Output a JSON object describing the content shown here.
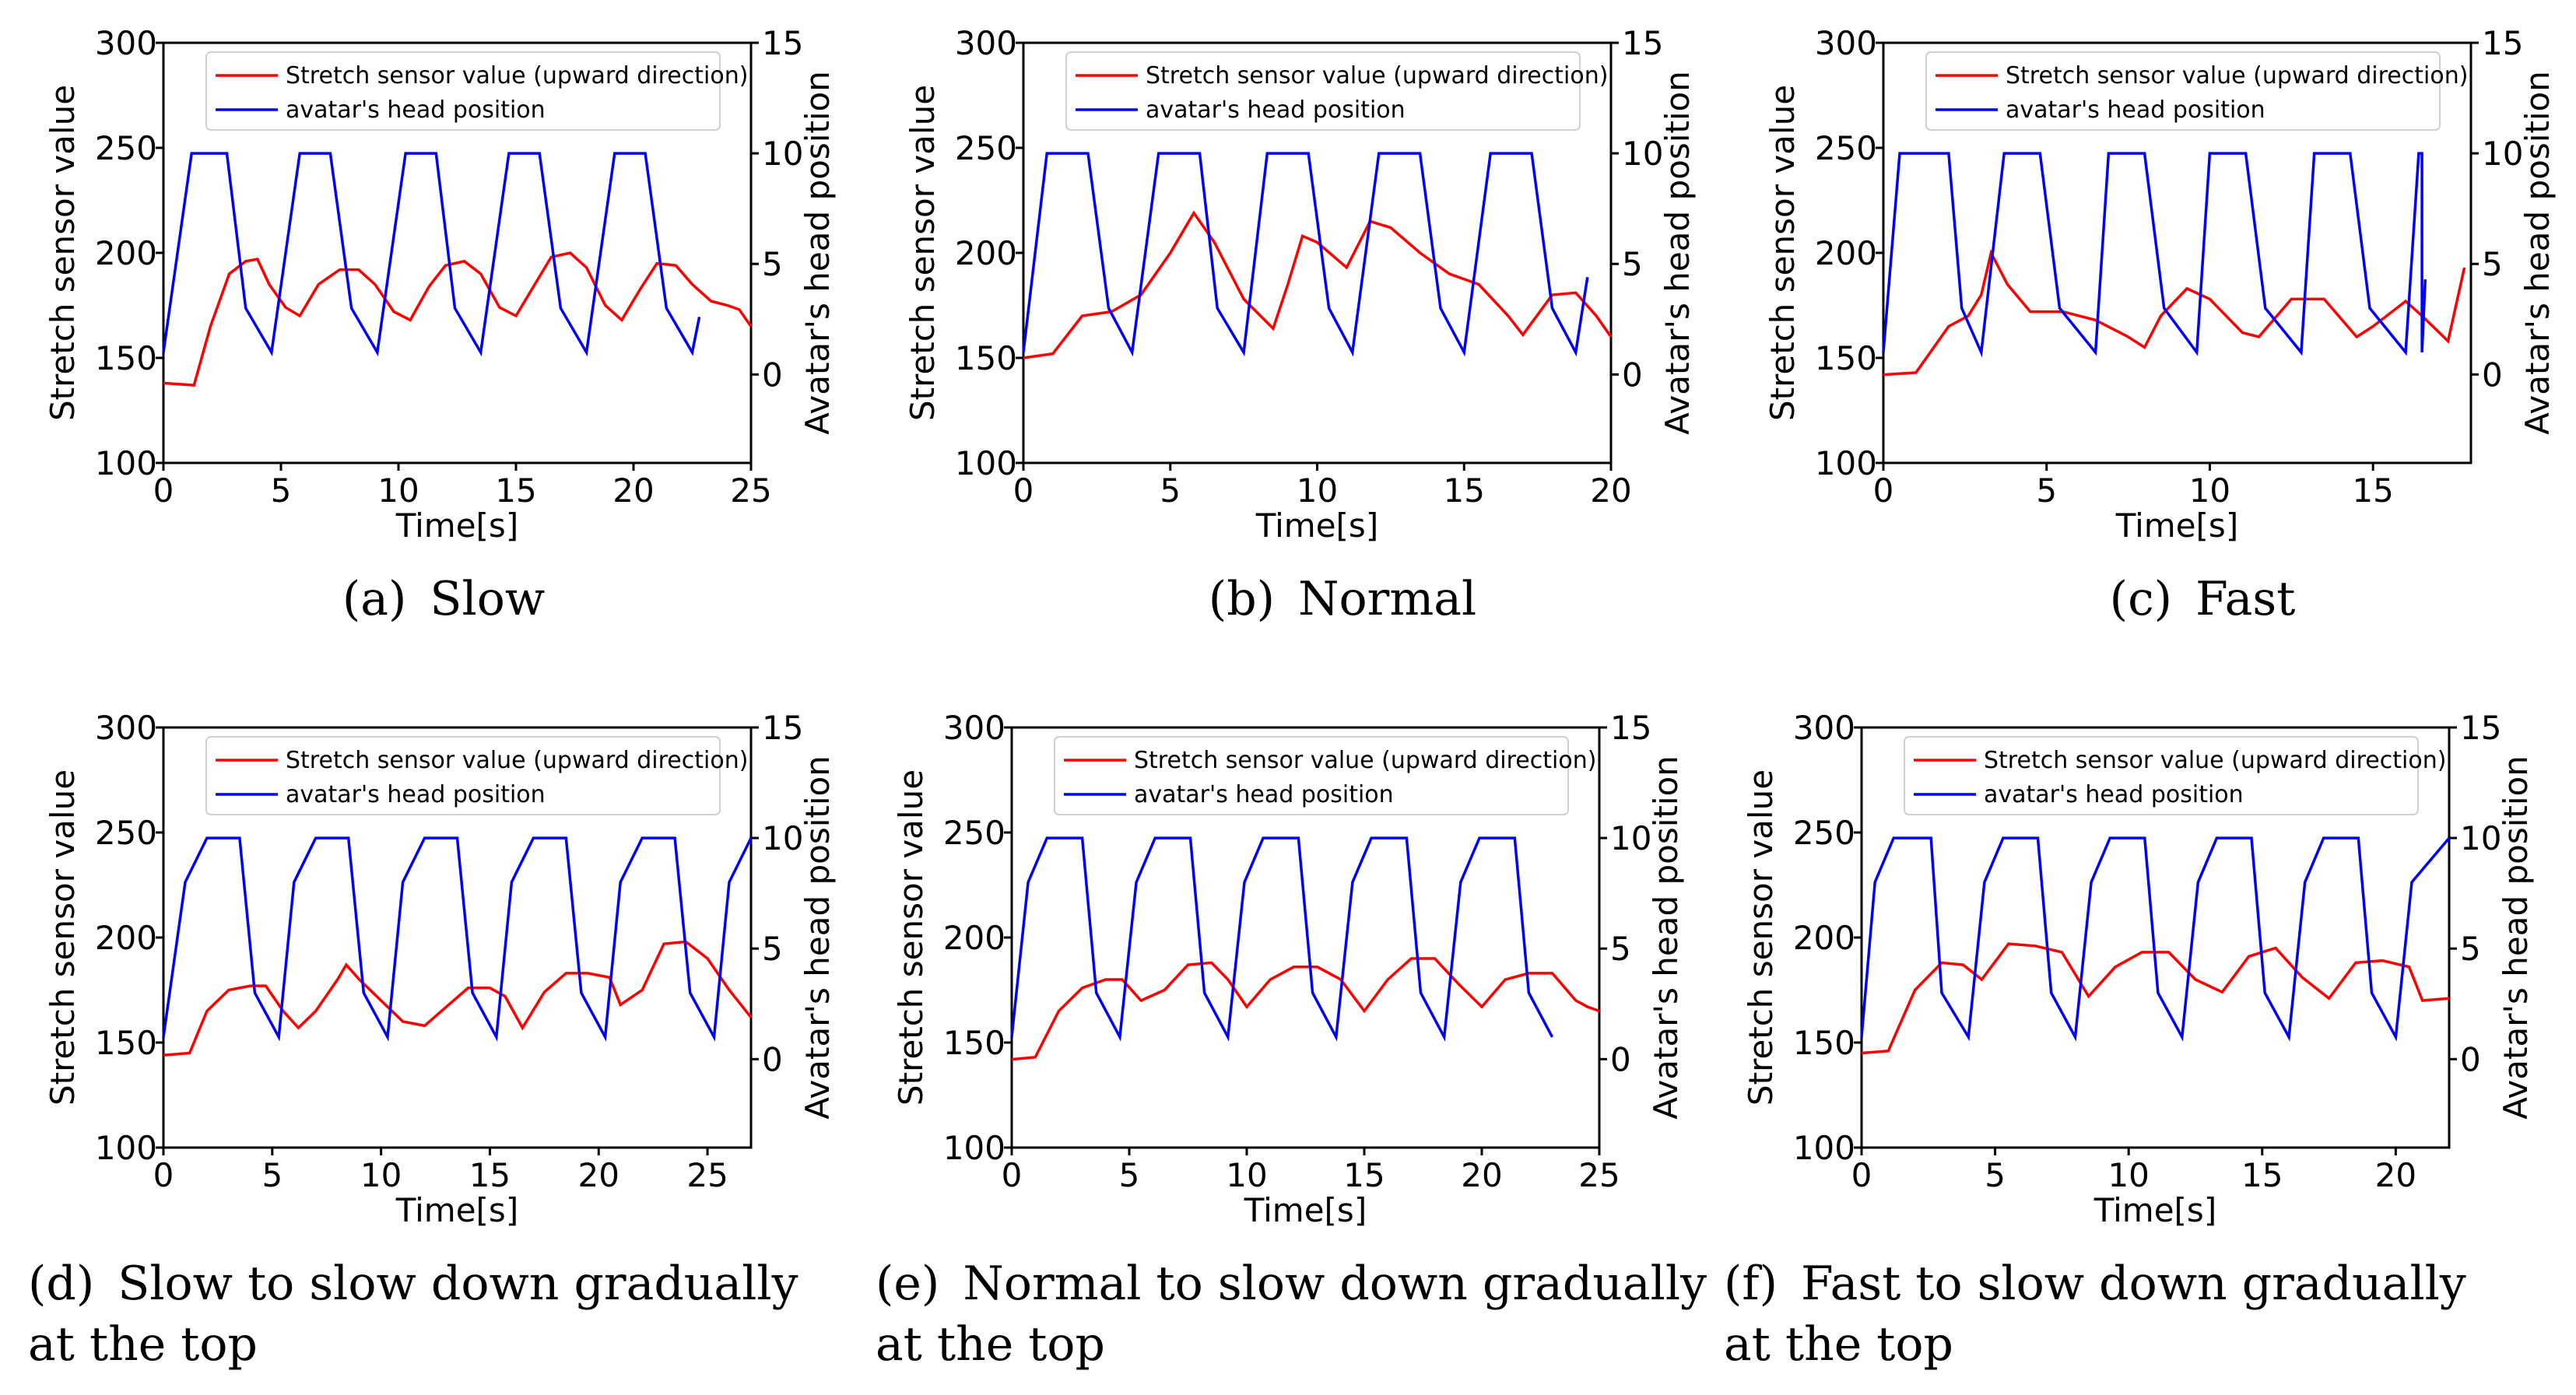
{
  "legend": {
    "red": "Stretch sensor value (upward direction)",
    "blue": "avatar's head position"
  },
  "colors": {
    "sensor": "#ff0000",
    "head": "#0000ff",
    "axis": "#000000"
  },
  "axis_labels": {
    "x": "Time[s]",
    "y_left": "Stretch sensor value",
    "y_right": "Avatar's head position"
  },
  "chart_data": [
    {
      "type": "line",
      "caption": [
        "(a) Slow"
      ],
      "title": "",
      "xlabel": "Time[s]",
      "ylabel": "Stretch sensor value",
      "ylabel_right": "Avatar's head position",
      "xlim": [
        0,
        25
      ],
      "ylim": [
        100,
        300
      ],
      "ylim_right": [
        -4,
        15
      ],
      "xticks": [
        "0",
        "5",
        "10",
        "15",
        "20",
        "25"
      ],
      "yticks": [
        "100",
        "150",
        "200",
        "250",
        "300"
      ],
      "yticks_right": [
        "0",
        "5",
        "10",
        "15"
      ],
      "grid": false,
      "legend_position": "top-right",
      "series": [
        {
          "name": "Stretch sensor value (upward direction)",
          "axis": "left",
          "x": [
            0,
            1.3,
            2.0,
            2.8,
            3.5,
            4.0,
            4.5,
            5.2,
            5.8,
            6.6,
            7.5,
            8.3,
            9.0,
            9.8,
            10.5,
            11.3,
            12.0,
            12.8,
            13.5,
            14.3,
            15.0,
            15.8,
            16.5,
            17.3,
            18.0,
            18.8,
            19.5,
            20.3,
            21.0,
            21.8,
            22.5,
            23.3,
            24.0,
            24.5,
            25.0
          ],
          "y": [
            138,
            137,
            165,
            190,
            196,
            197,
            185,
            174,
            170,
            185,
            192,
            192,
            185,
            172,
            168,
            184,
            194,
            196,
            190,
            174,
            170,
            185,
            198,
            200,
            193,
            175,
            168,
            183,
            195,
            194,
            185,
            177,
            175,
            173,
            165
          ]
        },
        {
          "name": "avatar's head position",
          "axis": "right",
          "x": [
            0,
            1.2,
            2.7,
            3.5,
            4.6,
            5.8,
            7.1,
            8.0,
            9.1,
            10.3,
            11.6,
            12.4,
            13.5,
            14.7,
            16.0,
            16.9,
            18.0,
            19.2,
            20.5,
            21.4,
            22.5,
            22.5,
            22.8
          ],
          "y": [
            1,
            10,
            10,
            3,
            1,
            10,
            10,
            3,
            1,
            10,
            10,
            3,
            1,
            10,
            10,
            3,
            1,
            10,
            10,
            3,
            1,
            1,
            2.6
          ]
        }
      ]
    },
    {
      "type": "line",
      "caption": [
        "(b) Normal"
      ],
      "title": "",
      "xlabel": "Time[s]",
      "ylabel": "Stretch sensor value",
      "ylabel_right": "Avatar's head position",
      "xlim": [
        0,
        20
      ],
      "ylim": [
        100,
        300
      ],
      "ylim_right": [
        -4,
        15
      ],
      "xticks": [
        "0",
        "5",
        "10",
        "15",
        "20"
      ],
      "yticks": [
        "100",
        "150",
        "200",
        "250",
        "300"
      ],
      "yticks_right": [
        "0",
        "5",
        "10",
        "15"
      ],
      "grid": false,
      "legend_position": "top-right",
      "series": [
        {
          "name": "Stretch sensor value (upward direction)",
          "axis": "left",
          "x": [
            0,
            1.0,
            2.0,
            3.0,
            4.0,
            5.0,
            5.8,
            6.5,
            7.5,
            8.5,
            9.0,
            9.5,
            10.0,
            11.0,
            11.8,
            12.5,
            13.5,
            14.5,
            15.5,
            16.5,
            17.0,
            18.0,
            18.8,
            19.5,
            20.0
          ],
          "y": [
            150,
            152,
            170,
            172,
            180,
            200,
            219,
            205,
            178,
            164,
            185,
            208,
            205,
            193,
            215,
            212,
            200,
            190,
            185,
            170,
            161,
            180,
            181,
            170,
            160
          ]
        },
        {
          "name": "avatar's head position",
          "axis": "right",
          "x": [
            0,
            0.8,
            2.2,
            2.9,
            3.7,
            4.6,
            6.0,
            6.6,
            7.5,
            8.3,
            9.7,
            10.4,
            11.2,
            12.1,
            13.5,
            14.2,
            15.0,
            15.9,
            17.3,
            18.0,
            18.8,
            18.8,
            19.2
          ],
          "y": [
            1,
            10,
            10,
            3,
            1,
            10,
            10,
            3,
            1,
            10,
            10,
            3,
            1,
            10,
            10,
            3,
            1,
            10,
            10,
            3,
            1,
            1,
            4.4
          ]
        }
      ]
    },
    {
      "type": "line",
      "caption": [
        "(c) Fast"
      ],
      "title": "",
      "xlabel": "Time[s]",
      "ylabel": "Stretch sensor value",
      "ylabel_right": "Avatar's head position",
      "xlim": [
        0,
        18
      ],
      "ylim": [
        100,
        300
      ],
      "ylim_right": [
        -4,
        15
      ],
      "xticks": [
        "0",
        "5",
        "10",
        "15"
      ],
      "yticks": [
        "100",
        "150",
        "200",
        "250",
        "300"
      ],
      "yticks_right": [
        "0",
        "5",
        "10",
        "15"
      ],
      "grid": false,
      "legend_position": "top-right",
      "series": [
        {
          "name": "Stretch sensor value (upward direction)",
          "axis": "left",
          "x": [
            0,
            1.0,
            2.0,
            2.6,
            3.0,
            3.3,
            3.8,
            4.5,
            5.5,
            6.5,
            7.5,
            8.0,
            8.5,
            9.3,
            10.0,
            11.0,
            11.5,
            12.5,
            13.5,
            14.5,
            15.0,
            16.0,
            16.5,
            17.3,
            17.8
          ],
          "y": [
            142,
            143,
            165,
            170,
            180,
            200,
            185,
            172,
            172,
            168,
            160,
            155,
            170,
            183,
            178,
            162,
            160,
            178,
            178,
            160,
            165,
            177,
            170,
            158,
            193
          ]
        },
        {
          "name": "avatar's head position",
          "axis": "right",
          "x": [
            0,
            0.5,
            2.0,
            2.4,
            3.0,
            3.7,
            4.8,
            5.4,
            6.5,
            6.9,
            8.0,
            8.6,
            9.6,
            10.0,
            11.1,
            11.7,
            12.8,
            13.2,
            14.3,
            14.9,
            16.0,
            16.4,
            16.5,
            16.5,
            16.6
          ],
          "y": [
            1,
            10,
            10,
            3,
            1,
            10,
            10,
            3,
            1,
            10,
            10,
            3,
            1,
            10,
            10,
            3,
            1,
            10,
            10,
            3,
            1,
            10,
            10,
            1,
            4.3
          ]
        }
      ]
    },
    {
      "type": "line",
      "caption": [
        "(d) Slow to slow down gradually",
        "at the top"
      ],
      "title": "",
      "xlabel": "Time[s]",
      "ylabel": "Stretch sensor value",
      "ylabel_right": "Avatar's head position",
      "xlim": [
        0,
        27
      ],
      "ylim": [
        100,
        300
      ],
      "ylim_right": [
        -4,
        15
      ],
      "xticks": [
        "0",
        "5",
        "10",
        "15",
        "20",
        "25"
      ],
      "yticks": [
        "100",
        "150",
        "200",
        "250",
        "300"
      ],
      "yticks_right": [
        "0",
        "5",
        "10",
        "15"
      ],
      "grid": false,
      "legend_position": "top-right",
      "series": [
        {
          "name": "Stretch sensor value (upward direction)",
          "axis": "left",
          "x": [
            0,
            1.2,
            2.0,
            3.0,
            4.0,
            4.7,
            5.5,
            6.2,
            7.0,
            8.0,
            8.4,
            9.0,
            10.0,
            11.0,
            12.0,
            13.0,
            14.0,
            15.0,
            15.7,
            16.5,
            17.5,
            18.5,
            19.5,
            20.5,
            21.0,
            22.0,
            23.0,
            24.0,
            25.0,
            26.0,
            27.0
          ],
          "y": [
            144,
            145,
            165,
            175,
            177,
            177,
            165,
            157,
            165,
            180,
            187,
            180,
            170,
            160,
            158,
            167,
            176,
            176,
            172,
            157,
            174,
            183,
            183,
            181,
            168,
            175,
            197,
            198,
            190,
            175,
            162
          ]
        },
        {
          "name": "avatar's head position",
          "axis": "right",
          "x": [
            0,
            1.0,
            2.0,
            3.5,
            4.2,
            5.3,
            6.0,
            7.0,
            8.5,
            9.2,
            10.3,
            11.0,
            12.0,
            13.5,
            14.2,
            15.3,
            16.0,
            17.0,
            18.5,
            19.2,
            20.3,
            21.0,
            22.0,
            23.5,
            24.2,
            25.3,
            26.0,
            27.0
          ],
          "y": [
            1,
            8,
            10,
            10,
            3,
            1,
            8,
            10,
            10,
            3,
            1,
            8,
            10,
            10,
            3,
            1,
            8,
            10,
            10,
            3,
            1,
            8,
            10,
            10,
            3,
            1,
            8,
            10
          ]
        }
      ]
    },
    {
      "type": "line",
      "caption": [
        "(e) Normal to slow down gradually",
        "at the top"
      ],
      "title": "",
      "xlabel": "Time[s]",
      "ylabel": "Stretch sensor value",
      "ylabel_right": "Avatar's head position",
      "xlim": [
        0,
        25
      ],
      "ylim": [
        100,
        300
      ],
      "ylim_right": [
        -4,
        15
      ],
      "xticks": [
        "0",
        "5",
        "10",
        "15",
        "20",
        "25"
      ],
      "yticks": [
        "100",
        "150",
        "200",
        "250",
        "300"
      ],
      "yticks_right": [
        "0",
        "5",
        "10",
        "15"
      ],
      "grid": false,
      "legend_position": "top-right",
      "series": [
        {
          "name": "Stretch sensor value (upward direction)",
          "axis": "left",
          "x": [
            0,
            1.0,
            2.0,
            3.0,
            4.0,
            4.7,
            5.5,
            6.5,
            7.5,
            8.5,
            9.2,
            10.0,
            11.0,
            12.0,
            13.0,
            14.0,
            15.0,
            16.0,
            17.0,
            18.0,
            19.0,
            20.0,
            21.0,
            22.0,
            23.0,
            24.0,
            24.5,
            25.0
          ],
          "y": [
            142,
            143,
            165,
            176,
            180,
            180,
            170,
            175,
            187,
            188,
            180,
            167,
            180,
            186,
            186,
            180,
            165,
            180,
            190,
            190,
            178,
            167,
            180,
            183,
            183,
            170,
            167,
            165
          ]
        },
        {
          "name": "avatar's head position",
          "axis": "right",
          "x": [
            0,
            0.7,
            1.5,
            3.0,
            3.6,
            4.6,
            5.3,
            6.1,
            7.6,
            8.2,
            9.2,
            9.9,
            10.7,
            12.2,
            12.8,
            13.8,
            14.5,
            15.3,
            16.8,
            17.4,
            18.4,
            19.1,
            19.9,
            21.4,
            22.0,
            23.0
          ],
          "y": [
            1,
            8,
            10,
            10,
            3,
            1,
            8,
            10,
            10,
            3,
            1,
            8,
            10,
            10,
            3,
            1,
            8,
            10,
            10,
            3,
            1,
            8,
            10,
            10,
            3,
            1
          ]
        }
      ]
    },
    {
      "type": "line",
      "caption": [
        "(f) Fast to slow down gradually",
        "at the top"
      ],
      "title": "",
      "xlabel": "Time[s]",
      "ylabel": "Stretch sensor value",
      "ylabel_right": "Avatar's head position",
      "xlim": [
        0,
        22
      ],
      "ylim": [
        100,
        300
      ],
      "ylim_right": [
        -4,
        15
      ],
      "xticks": [
        "0",
        "5",
        "10",
        "15",
        "20"
      ],
      "yticks": [
        "100",
        "150",
        "200",
        "250",
        "300"
      ],
      "yticks_right": [
        "0",
        "5",
        "10",
        "15"
      ],
      "grid": false,
      "legend_position": "top-right",
      "series": [
        {
          "name": "Stretch sensor value (upward direction)",
          "axis": "left",
          "x": [
            0,
            1.0,
            2.0,
            3.0,
            3.8,
            4.5,
            5.5,
            6.5,
            7.5,
            8.5,
            9.5,
            10.5,
            11.5,
            12.5,
            13.5,
            14.5,
            15.5,
            16.5,
            17.5,
            18.5,
            19.5,
            20.5,
            21.0,
            22.0
          ],
          "y": [
            145,
            146,
            175,
            188,
            187,
            180,
            197,
            196,
            193,
            172,
            186,
            193,
            193,
            180,
            174,
            191,
            195,
            181,
            171,
            188,
            189,
            186,
            170,
            171
          ]
        },
        {
          "name": "avatar's head position",
          "axis": "right",
          "x": [
            0,
            0.5,
            1.2,
            2.6,
            3.0,
            4.0,
            4.6,
            5.3,
            6.6,
            7.1,
            8.0,
            8.6,
            9.3,
            10.6,
            11.1,
            12.0,
            12.6,
            13.3,
            14.6,
            15.1,
            16.0,
            16.6,
            17.3,
            18.6,
            19.1,
            20.0,
            20.6,
            22.0
          ],
          "y": [
            1,
            8,
            10,
            10,
            3,
            1,
            8,
            10,
            10,
            3,
            1,
            8,
            10,
            10,
            3,
            1,
            8,
            10,
            10,
            3,
            1,
            8,
            10,
            10,
            3,
            1,
            8,
            10
          ]
        }
      ]
    }
  ]
}
